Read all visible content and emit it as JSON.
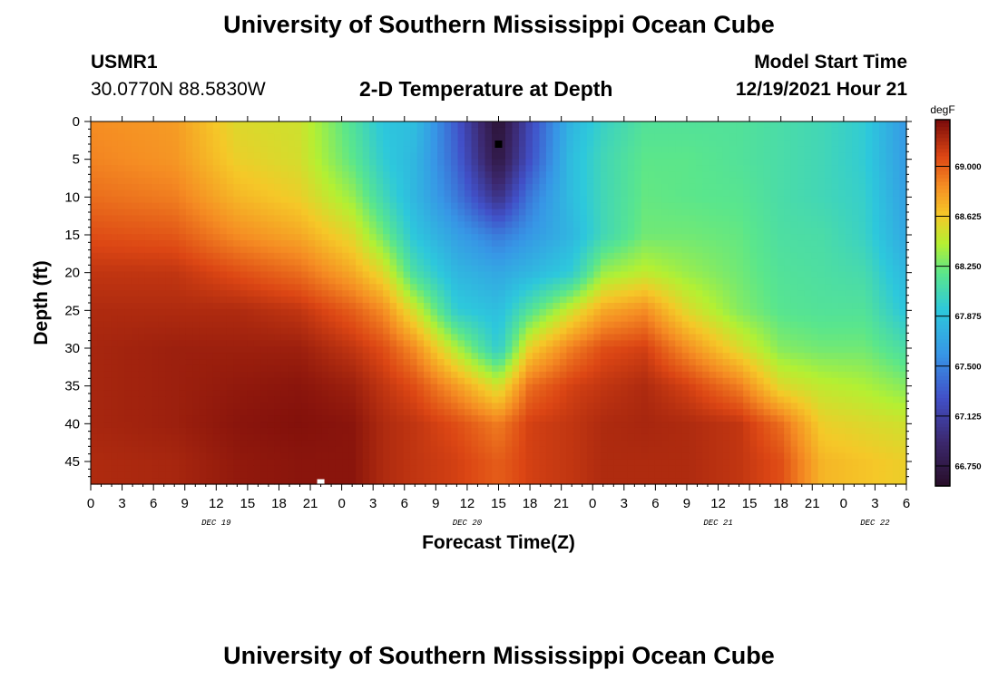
{
  "page": {
    "title_top": "University of Southern Mississippi Ocean Cube",
    "title_bottom": "University of Southern Mississippi Ocean Cube",
    "station_id": "USMR1",
    "station_coords": "30.0770N  88.5830W",
    "model_start_label": "Model Start Time",
    "model_start_value": "12/19/2021 Hour 21"
  },
  "chart_data": {
    "type": "heatmap",
    "title": "2-D Temperature at Depth",
    "xlabel": "Forecast Time(Z)",
    "ylabel": "Depth (ft)",
    "units": "degF",
    "xlim_hours": [
      0,
      78
    ],
    "ylim": [
      0,
      48
    ],
    "y_ticks": [
      0,
      5,
      10,
      15,
      20,
      25,
      30,
      35,
      40,
      45
    ],
    "x_tick_labels": [
      "0",
      "3",
      "6",
      "9",
      "12",
      "15",
      "18",
      "21",
      "0",
      "3",
      "6",
      "9",
      "12",
      "15",
      "18",
      "21",
      "0",
      "3",
      "6",
      "9",
      "12",
      "15",
      "18",
      "21",
      "0",
      "3",
      "6"
    ],
    "date_labels": [
      {
        "label": "DEC 19",
        "hour": 12
      },
      {
        "label": "DEC 20",
        "hour": 36
      },
      {
        "label": "DEC 21",
        "hour": 60
      },
      {
        "label": "DEC 22",
        "hour": 75
      }
    ],
    "colorbar": {
      "ticks": [
        69.0,
        68.625,
        68.25,
        67.875,
        67.5,
        67.125,
        66.75
      ],
      "tick_labels": [
        "69.000",
        "68.625",
        "68.250",
        "67.875",
        "67.500",
        "67.125",
        "66.750"
      ],
      "range": [
        66.6,
        69.35
      ]
    },
    "depth_profiles": [
      {
        "hour": 0,
        "temps": [
          68.85,
          68.88,
          68.95,
          69.05,
          69.15,
          69.2,
          69.22,
          69.22,
          69.22,
          69.2
        ]
      },
      {
        "hour": 8,
        "temps": [
          68.8,
          68.82,
          68.9,
          69.02,
          69.15,
          69.2,
          69.25,
          69.25,
          69.25,
          69.22
        ]
      },
      {
        "hour": 14,
        "temps": [
          68.55,
          68.6,
          68.7,
          68.85,
          69.05,
          69.2,
          69.25,
          69.28,
          69.3,
          69.28
        ]
      },
      {
        "hour": 20,
        "temps": [
          68.5,
          68.52,
          68.6,
          68.75,
          68.95,
          69.15,
          69.25,
          69.3,
          69.32,
          69.3
        ]
      },
      {
        "hour": 25,
        "temps": [
          68.15,
          68.2,
          68.35,
          68.55,
          68.75,
          69.0,
          69.15,
          69.25,
          69.3,
          69.3
        ]
      },
      {
        "hour": 28,
        "temps": [
          67.9,
          67.95,
          68.05,
          68.25,
          68.55,
          68.85,
          69.05,
          69.15,
          69.2,
          69.2
        ]
      },
      {
        "hour": 31,
        "temps": [
          67.85,
          67.8,
          67.8,
          67.9,
          68.1,
          68.5,
          68.85,
          69.05,
          69.15,
          69.15
        ]
      },
      {
        "hour": 35,
        "temps": [
          67.3,
          67.35,
          67.45,
          67.65,
          67.8,
          67.95,
          68.4,
          68.8,
          69.05,
          69.1
        ]
      },
      {
        "hour": 39,
        "temps": [
          66.65,
          66.72,
          67.0,
          67.45,
          67.7,
          67.85,
          67.95,
          68.5,
          68.9,
          69.0
        ]
      },
      {
        "hour": 42,
        "temps": [
          67.2,
          67.25,
          67.45,
          67.6,
          67.8,
          68.15,
          68.6,
          68.95,
          69.1,
          69.1
        ]
      },
      {
        "hour": 46,
        "temps": [
          67.8,
          67.85,
          67.85,
          67.8,
          67.95,
          68.5,
          68.9,
          69.1,
          69.15,
          69.15
        ]
      },
      {
        "hour": 49,
        "temps": [
          68.0,
          68.05,
          68.05,
          68.05,
          68.35,
          68.75,
          69.05,
          69.15,
          69.2,
          69.2
        ]
      },
      {
        "hour": 53,
        "temps": [
          68.15,
          68.2,
          68.22,
          68.25,
          68.45,
          68.85,
          69.1,
          69.2,
          69.22,
          69.2
        ]
      },
      {
        "hour": 57,
        "temps": [
          68.15,
          68.2,
          68.2,
          68.25,
          68.35,
          68.55,
          68.85,
          69.1,
          69.2,
          69.2
        ]
      },
      {
        "hour": 62,
        "temps": [
          68.15,
          68.15,
          68.18,
          68.22,
          68.25,
          68.3,
          68.55,
          68.9,
          69.15,
          69.15
        ]
      },
      {
        "hour": 66,
        "temps": [
          68.1,
          68.1,
          68.1,
          68.12,
          68.15,
          68.18,
          68.3,
          68.55,
          68.95,
          69.05
        ]
      },
      {
        "hour": 70,
        "temps": [
          68.05,
          68.05,
          68.05,
          68.1,
          68.12,
          68.15,
          68.25,
          68.45,
          68.6,
          68.7
        ]
      },
      {
        "hour": 74,
        "temps": [
          67.95,
          67.95,
          67.98,
          68.0,
          68.08,
          68.15,
          68.25,
          68.4,
          68.55,
          68.65
        ]
      },
      {
        "hour": 78,
        "temps": [
          67.6,
          67.62,
          67.65,
          67.7,
          67.8,
          67.9,
          68.1,
          68.3,
          68.5,
          68.6
        ]
      }
    ],
    "profile_depths": [
      0,
      5,
      10,
      15,
      20,
      25,
      30,
      35,
      40,
      45
    ],
    "markers": [
      {
        "kind": "minimum",
        "color": "#000000",
        "hour": 39,
        "depth": 3
      },
      {
        "kind": "maximum",
        "color": "#ffffff",
        "hour": 22,
        "depth": 48
      }
    ]
  }
}
